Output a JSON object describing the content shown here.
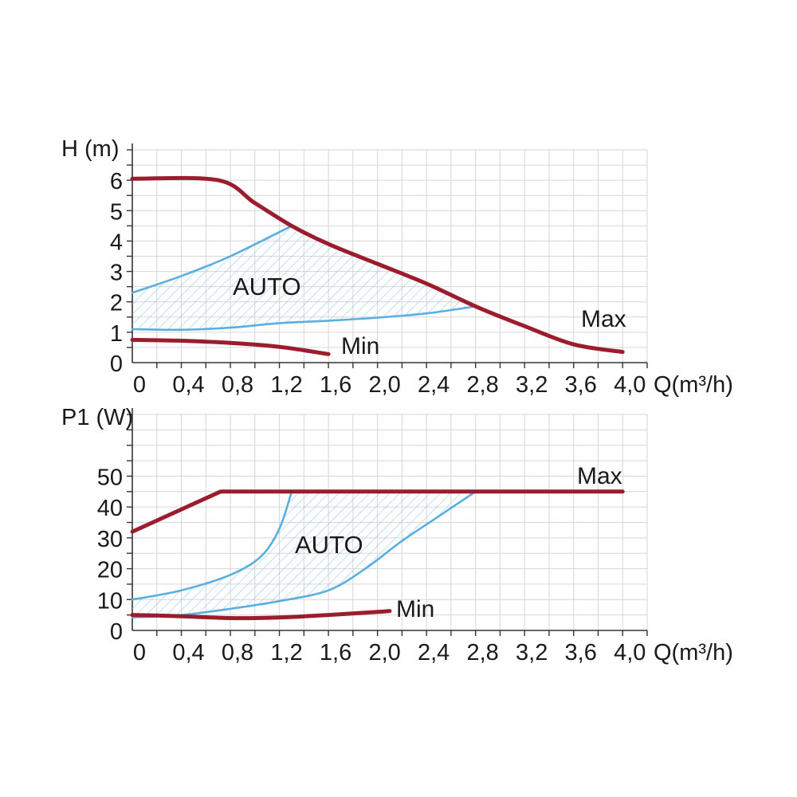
{
  "chart_data": [
    {
      "type": "line",
      "ylabel": "H (m)",
      "xlabel": "Q(m³/h)",
      "x_ticks": [
        "0",
        "0,4",
        "0,8",
        "1,2",
        "1,6",
        "2,0",
        "2,4",
        "2,8",
        "3,2",
        "3,6",
        "4,0"
      ],
      "y_ticks": [
        "0",
        "1",
        "2",
        "3",
        "4",
        "5",
        "6"
      ],
      "xlim": [
        0,
        4.2
      ],
      "ylim": [
        0,
        7
      ],
      "grid": true,
      "series": [
        {
          "name": "Max",
          "color": "#9b1c2c",
          "points": [
            [
              0,
              6.05
            ],
            [
              0.7,
              6.0
            ],
            [
              1.0,
              5.25
            ],
            [
              1.3,
              4.5
            ],
            [
              1.6,
              3.9
            ],
            [
              2.0,
              3.25
            ],
            [
              2.4,
              2.6
            ],
            [
              2.8,
              1.85
            ],
            [
              3.2,
              1.2
            ],
            [
              3.6,
              0.6
            ],
            [
              4.0,
              0.35
            ]
          ]
        },
        {
          "name": "Min",
          "color": "#9b1c2c",
          "points": [
            [
              0,
              0.75
            ],
            [
              0.4,
              0.72
            ],
            [
              0.8,
              0.65
            ],
            [
              1.2,
              0.52
            ],
            [
              1.6,
              0.28
            ]
          ]
        }
      ],
      "auto_region": {
        "label": "AUTO",
        "color": "#5aaee0",
        "upper": [
          [
            0,
            2.3
          ],
          [
            0.4,
            2.85
          ],
          [
            0.8,
            3.5
          ],
          [
            1.3,
            4.5
          ]
        ],
        "lower": [
          [
            0,
            1.1
          ],
          [
            0.4,
            1.08
          ],
          [
            0.8,
            1.15
          ],
          [
            1.2,
            1.3
          ],
          [
            1.6,
            1.38
          ],
          [
            2.0,
            1.48
          ],
          [
            2.4,
            1.62
          ],
          [
            2.8,
            1.85
          ]
        ]
      }
    },
    {
      "type": "line",
      "ylabel": "P1 (W)",
      "xlabel": "Q(m³/h)",
      "x_ticks": [
        "0",
        "0,4",
        "0,8",
        "1,2",
        "1,6",
        "2,0",
        "2,4",
        "2,8",
        "3,2",
        "3,6",
        "4,0"
      ],
      "y_ticks": [
        "0",
        "10",
        "20",
        "30",
        "40",
        "50"
      ],
      "xlim": [
        0,
        4.2
      ],
      "ylim": [
        0,
        70
      ],
      "grid": true,
      "series": [
        {
          "name": "Max",
          "color": "#9b1c2c",
          "points": [
            [
              0,
              32
            ],
            [
              0.72,
              45
            ],
            [
              4.0,
              45
            ]
          ]
        },
        {
          "name": "Min",
          "color": "#9b1c2c",
          "points": [
            [
              0,
              5
            ],
            [
              0.4,
              4.6
            ],
            [
              0.8,
              4.0
            ],
            [
              1.2,
              4.2
            ],
            [
              1.6,
              5.0
            ],
            [
              2.0,
              6.0
            ],
            [
              2.1,
              6.3
            ]
          ]
        }
      ],
      "auto_region": {
        "label": "AUTO",
        "color": "#5aaee0",
        "upper": [
          [
            0,
            10
          ],
          [
            0.4,
            13
          ],
          [
            0.8,
            18
          ],
          [
            1.05,
            24
          ],
          [
            1.2,
            33
          ],
          [
            1.3,
            45
          ]
        ],
        "lower": [
          [
            0,
            4.2
          ],
          [
            0.4,
            5.0
          ],
          [
            0.8,
            7.0
          ],
          [
            1.2,
            9.5
          ],
          [
            1.6,
            13.0
          ],
          [
            1.9,
            20
          ],
          [
            2.2,
            29
          ],
          [
            2.5,
            37
          ],
          [
            2.8,
            45
          ]
        ]
      }
    }
  ]
}
